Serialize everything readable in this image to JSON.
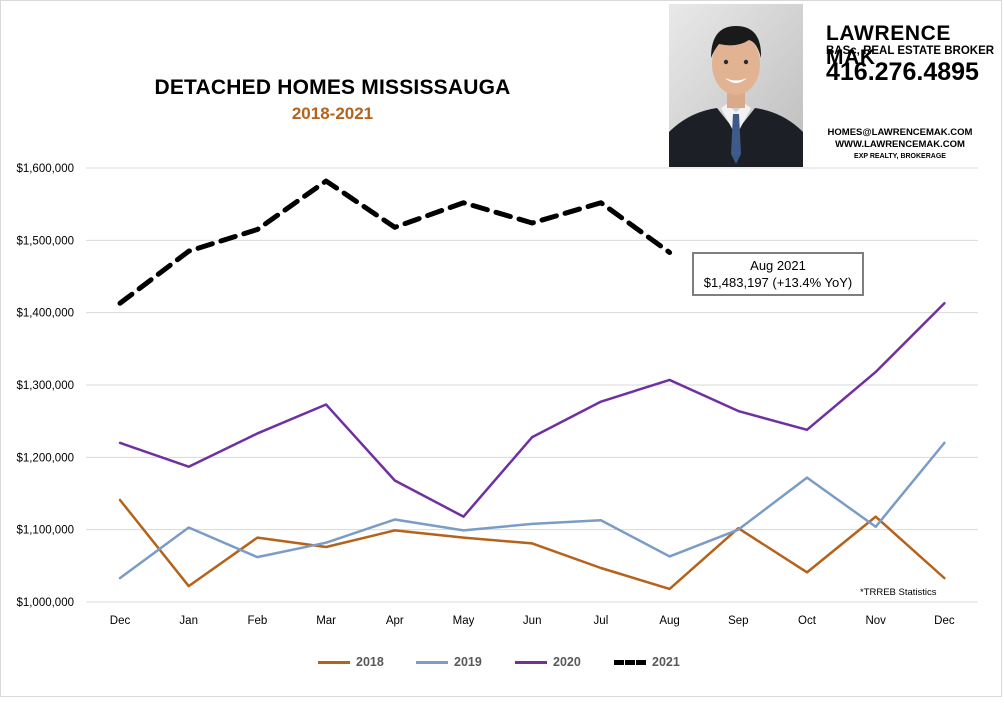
{
  "chart_data": {
    "type": "line",
    "title": "DETACHED HOMES MISSISSAUGA",
    "subtitle": "2018-2021",
    "categories": [
      "Dec",
      "Jan",
      "Feb",
      "Mar",
      "Apr",
      "May",
      "Jun",
      "Jul",
      "Aug",
      "Sep",
      "Oct",
      "Nov",
      "Dec"
    ],
    "y_ticks": [
      1000000,
      1100000,
      1200000,
      1300000,
      1400000,
      1500000,
      1600000
    ],
    "y_tick_labels": [
      "$1,000,000",
      "$1,100,000",
      "$1,200,000",
      "$1,300,000",
      "$1,400,000",
      "$1,500,000",
      "$1,600,000"
    ],
    "ylim": [
      1000000,
      1600000
    ],
    "grid": true,
    "legend_position": "bottom",
    "series": [
      {
        "name": "2018",
        "color": "#b5621a",
        "style": "solid",
        "values": [
          1141000,
          1022000,
          1089000,
          1076000,
          1099000,
          1089000,
          1081000,
          1047000,
          1018000,
          1102000,
          1041000,
          1118000,
          1033000
        ]
      },
      {
        "name": "2019",
        "color": "#7a9cc6",
        "style": "solid",
        "values": [
          1033000,
          1103000,
          1062000,
          1082000,
          1114000,
          1099000,
          1108000,
          1113000,
          1063000,
          1100000,
          1172000,
          1104000,
          1220000
        ]
      },
      {
        "name": "2020",
        "color": "#7030a0",
        "style": "solid",
        "values": [
          1220000,
          1187000,
          1233000,
          1273000,
          1168000,
          1118000,
          1228000,
          1277000,
          1307000,
          1264000,
          1238000,
          1318000,
          1413000
        ]
      },
      {
        "name": "2021",
        "color": "#000000",
        "style": "dashed",
        "values": [
          1413000,
          1485000,
          1515000,
          1582000,
          1518000,
          1552000,
          1524000,
          1552000,
          1483197,
          null,
          null,
          null,
          null
        ]
      }
    ],
    "annotation": {
      "line1": "Aug 2021",
      "line2": "$1,483,197  (+13.4%  YoY)"
    },
    "footnote": "*TRREB Statistics"
  },
  "agent": {
    "name": "LAWRENCE MAK",
    "credentials": "BASc, REAL ESTATE BROKER",
    "phone": "416.276.4895",
    "email": "HOMES@LAWRENCEMAK.COM",
    "website": "WWW.LAWRENCEMAK.COM",
    "brokerage": "EXP REALTY, BROKERAGE"
  }
}
